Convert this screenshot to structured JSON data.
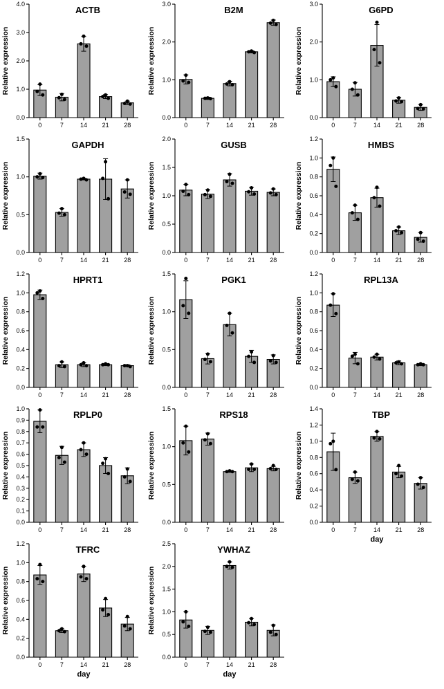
{
  "chart_data": [
    {
      "type": "bar",
      "title": "ACTB",
      "ylabel": "Relative expression",
      "xlabel": "",
      "ylim": [
        0,
        4
      ],
      "yticks": [
        "0.0",
        "1.0",
        "2.0",
        "3.0",
        "4.0"
      ],
      "categories": [
        "0",
        "7",
        "14",
        "21",
        "28"
      ],
      "values": [
        0.97,
        0.72,
        2.6,
        0.74,
        0.52
      ],
      "errors": [
        0.19,
        0.13,
        0.26,
        0.07,
        0.06
      ],
      "points": [
        [
          1.18,
          0.92,
          0.8
        ],
        [
          0.82,
          0.7,
          0.64
        ],
        [
          2.87,
          2.6,
          2.52
        ],
        [
          0.8,
          0.74,
          0.68
        ],
        [
          0.58,
          0.5,
          0.48
        ]
      ]
    },
    {
      "type": "bar",
      "title": "B2M",
      "ylabel": "Relative expression",
      "xlabel": "",
      "ylim": [
        0,
        3
      ],
      "yticks": [
        "0.0",
        "1.0",
        "2.0",
        "3.0"
      ],
      "categories": [
        "0",
        "7",
        "14",
        "21",
        "28"
      ],
      "values": [
        1.01,
        0.51,
        0.9,
        1.74,
        2.51
      ],
      "errors": [
        0.12,
        0.03,
        0.06,
        0.03,
        0.07
      ],
      "points": [
        [
          1.12,
          0.97,
          0.93
        ],
        [
          0.52,
          0.51,
          0.5
        ],
        [
          0.95,
          0.89,
          0.87
        ],
        [
          1.76,
          1.74,
          1.72
        ],
        [
          2.57,
          2.5,
          2.46
        ]
      ]
    },
    {
      "type": "bar",
      "title": "G6PD",
      "ylabel": "Relative expression",
      "xlabel": "",
      "ylim": [
        0,
        3
      ],
      "yticks": [
        "0.0",
        "1.0",
        "2.0",
        "3.0"
      ],
      "categories": [
        "0",
        "7",
        "14",
        "21",
        "28"
      ],
      "values": [
        0.95,
        0.75,
        1.91,
        0.46,
        0.27
      ],
      "errors": [
        0.13,
        0.18,
        0.55,
        0.08,
        0.08
      ],
      "points": [
        [
          1.05,
          1.0,
          0.82
        ],
        [
          0.92,
          0.75,
          0.6
        ],
        [
          2.52,
          1.8,
          1.45
        ],
        [
          0.52,
          0.44,
          0.42
        ],
        [
          0.34,
          0.24,
          0.23
        ]
      ]
    },
    {
      "type": "bar",
      "title": "GAPDH",
      "ylabel": "Relative expression",
      "xlabel": "",
      "ylim": [
        0,
        1.5
      ],
      "yticks": [
        "0.0",
        "0.5",
        "1.0",
        "1.5"
      ],
      "categories": [
        "0",
        "7",
        "14",
        "21",
        "28"
      ],
      "values": [
        1.01,
        0.53,
        0.97,
        0.97,
        0.84
      ],
      "errors": [
        0.04,
        0.05,
        0.01,
        0.27,
        0.12
      ],
      "points": [
        [
          1.04,
          1.0,
          0.99
        ],
        [
          0.58,
          0.52,
          0.5
        ],
        [
          0.98,
          0.97,
          0.96
        ],
        [
          1.2,
          0.98,
          0.71
        ],
        [
          0.96,
          0.8,
          0.77
        ]
      ]
    },
    {
      "type": "bar",
      "title": "GUSB",
      "ylabel": "Relative expression",
      "xlabel": "",
      "ylim": [
        0,
        2
      ],
      "yticks": [
        "0.0",
        "0.5",
        "1.0",
        "1.5",
        "2.0"
      ],
      "categories": [
        "0",
        "7",
        "14",
        "21",
        "28"
      ],
      "values": [
        1.1,
        1.03,
        1.28,
        1.08,
        1.06
      ],
      "errors": [
        0.1,
        0.08,
        0.11,
        0.07,
        0.06
      ],
      "points": [
        [
          1.2,
          1.08,
          1.02
        ],
        [
          1.1,
          1.02,
          0.99
        ],
        [
          1.38,
          1.25,
          1.22
        ],
        [
          1.14,
          1.07,
          1.03
        ],
        [
          1.12,
          1.05,
          1.02
        ]
      ]
    },
    {
      "type": "bar",
      "title": "HMBS",
      "ylabel": "Relative expression",
      "xlabel": "",
      "ylim": [
        0,
        1.2
      ],
      "yticks": [
        "0.0",
        "0.2",
        "0.4",
        "0.6",
        "0.8",
        "1.0",
        "1.2"
      ],
      "categories": [
        "0",
        "7",
        "14",
        "21",
        "28"
      ],
      "values": [
        0.88,
        0.42,
        0.58,
        0.23,
        0.16
      ],
      "errors": [
        0.13,
        0.08,
        0.1,
        0.04,
        0.05
      ],
      "points": [
        [
          1.0,
          0.92,
          0.7
        ],
        [
          0.5,
          0.42,
          0.35
        ],
        [
          0.69,
          0.58,
          0.49
        ],
        [
          0.27,
          0.23,
          0.21
        ],
        [
          0.21,
          0.14,
          0.12
        ]
      ]
    },
    {
      "type": "bar",
      "title": "HPRT1",
      "ylabel": "Relative expression",
      "xlabel": "",
      "ylim": [
        0,
        1.2
      ],
      "yticks": [
        "0.0",
        "0.2",
        "0.4",
        "0.6",
        "0.8",
        "1.0",
        "1.2"
      ],
      "categories": [
        "0",
        "7",
        "14",
        "21",
        "28"
      ],
      "values": [
        0.98,
        0.24,
        0.24,
        0.24,
        0.23
      ],
      "errors": [
        0.05,
        0.03,
        0.02,
        0.01,
        0.01
      ],
      "points": [
        [
          1.02,
          1.0,
          0.94
        ],
        [
          0.27,
          0.23,
          0.22
        ],
        [
          0.26,
          0.24,
          0.23
        ],
        [
          0.25,
          0.24,
          0.24
        ],
        [
          0.23,
          0.23,
          0.22
        ]
      ]
    },
    {
      "type": "bar",
      "title": "PGK1",
      "ylabel": "Relative expression",
      "xlabel": "",
      "ylim": [
        0,
        1.5
      ],
      "yticks": [
        "0.0",
        "0.5",
        "1.0",
        "1.5"
      ],
      "categories": [
        "0",
        "7",
        "14",
        "21",
        "28"
      ],
      "values": [
        1.16,
        0.38,
        0.83,
        0.41,
        0.37
      ],
      "errors": [
        0.25,
        0.07,
        0.15,
        0.08,
        0.06
      ],
      "points": [
        [
          1.44,
          1.08,
          0.98
        ],
        [
          0.44,
          0.37,
          0.34
        ],
        [
          0.98,
          0.82,
          0.72
        ],
        [
          0.47,
          0.41,
          0.33
        ],
        [
          0.42,
          0.35,
          0.33
        ]
      ]
    },
    {
      "type": "bar",
      "title": "RPL13A",
      "ylabel": "Relative expression",
      "xlabel": "",
      "ylim": [
        0,
        1.2
      ],
      "yticks": [
        "0.0",
        "0.2",
        "0.4",
        "0.6",
        "0.8",
        "1.0",
        "1.2"
      ],
      "categories": [
        "0",
        "7",
        "14",
        "21",
        "28"
      ],
      "values": [
        0.87,
        0.31,
        0.32,
        0.26,
        0.24
      ],
      "errors": [
        0.12,
        0.06,
        0.03,
        0.02,
        0.01
      ],
      "points": [
        [
          0.99,
          0.87,
          0.78
        ],
        [
          0.35,
          0.33,
          0.25
        ],
        [
          0.35,
          0.32,
          0.3
        ],
        [
          0.27,
          0.26,
          0.25
        ],
        [
          0.25,
          0.24,
          0.24
        ]
      ]
    },
    {
      "type": "bar",
      "title": "RPLP0",
      "ylabel": "Relative expression",
      "xlabel": "",
      "ylim": [
        0,
        1.0
      ],
      "yticks": [
        "0.0",
        "0.1",
        "0.2",
        "0.3",
        "0.4",
        "0.5",
        "0.6",
        "0.7",
        "0.8",
        "0.9",
        "1.0"
      ],
      "categories": [
        "0",
        "7",
        "14",
        "21",
        "28"
      ],
      "values": [
        0.89,
        0.59,
        0.64,
        0.5,
        0.41
      ],
      "errors": [
        0.1,
        0.08,
        0.06,
        0.07,
        0.07
      ],
      "points": [
        [
          0.99,
          0.84,
          0.84
        ],
        [
          0.66,
          0.57,
          0.53
        ],
        [
          0.7,
          0.64,
          0.6
        ],
        [
          0.56,
          0.52,
          0.43
        ],
        [
          0.47,
          0.4,
          0.36
        ]
      ]
    },
    {
      "type": "bar",
      "title": "RPS18",
      "ylabel": "Relative expression",
      "xlabel": "",
      "ylim": [
        0,
        1.5
      ],
      "yticks": [
        "0.0",
        "0.5",
        "1.0",
        "1.5"
      ],
      "categories": [
        "0",
        "7",
        "14",
        "21",
        "28"
      ],
      "values": [
        1.08,
        1.1,
        0.67,
        0.72,
        0.71
      ],
      "errors": [
        0.19,
        0.08,
        0.01,
        0.05,
        0.03
      ],
      "points": [
        [
          1.27,
          1.05,
          0.93
        ],
        [
          1.17,
          1.09,
          1.04
        ],
        [
          0.68,
          0.67,
          0.67
        ],
        [
          0.77,
          0.7,
          0.7
        ],
        [
          0.75,
          0.71,
          0.7
        ]
      ]
    },
    {
      "type": "bar",
      "title": "TBP",
      "ylabel": "Relative expression",
      "xlabel": "day",
      "ylim": [
        0,
        1.4
      ],
      "yticks": [
        "0.0",
        "0.2",
        "0.4",
        "0.6",
        "0.8",
        "1.0",
        "1.2",
        "1.4"
      ],
      "categories": [
        "0",
        "7",
        "14",
        "21",
        "28"
      ],
      "values": [
        0.87,
        0.55,
        1.06,
        0.62,
        0.48
      ],
      "errors": [
        0.23,
        0.07,
        0.06,
        0.07,
        0.07
      ],
      "points": [
        [
          1.0,
          0.97,
          0.65
        ],
        [
          0.62,
          0.53,
          0.51
        ],
        [
          1.12,
          1.04,
          1.03
        ],
        [
          0.7,
          0.6,
          0.57
        ],
        [
          0.55,
          0.47,
          0.43
        ]
      ]
    },
    {
      "type": "bar",
      "title": "TFRC",
      "ylabel": "Relative expression",
      "xlabel": "day",
      "ylim": [
        0,
        1.2
      ],
      "yticks": [
        "0.0",
        "0.2",
        "0.4",
        "0.6",
        "0.8",
        "1.0",
        "1.2"
      ],
      "categories": [
        "0",
        "7",
        "14",
        "21",
        "28"
      ],
      "values": [
        0.87,
        0.28,
        0.88,
        0.52,
        0.35
      ],
      "errors": [
        0.1,
        0.02,
        0.08,
        0.09,
        0.07
      ],
      "points": [
        [
          0.98,
          0.83,
          0.8
        ],
        [
          0.3,
          0.28,
          0.27
        ],
        [
          0.96,
          0.85,
          0.83
        ],
        [
          0.62,
          0.5,
          0.45
        ],
        [
          0.43,
          0.33,
          0.3
        ]
      ]
    },
    {
      "type": "bar",
      "title": "YWHAZ",
      "ylabel": "Relative expression",
      "xlabel": "day",
      "ylim": [
        0,
        2.5
      ],
      "yticks": [
        "0.0",
        "0.5",
        "1.0",
        "1.5",
        "2.0",
        "2.5"
      ],
      "categories": [
        "0",
        "7",
        "14",
        "21",
        "28"
      ],
      "values": [
        0.82,
        0.59,
        2.02,
        0.77,
        0.59
      ],
      "errors": [
        0.18,
        0.09,
        0.08,
        0.08,
        0.12
      ],
      "points": [
        [
          1.0,
          0.78,
          0.68
        ],
        [
          0.66,
          0.57,
          0.55
        ],
        [
          2.1,
          2.0,
          1.98
        ],
        [
          0.85,
          0.76,
          0.72
        ],
        [
          0.7,
          0.55,
          0.5
        ]
      ]
    }
  ]
}
